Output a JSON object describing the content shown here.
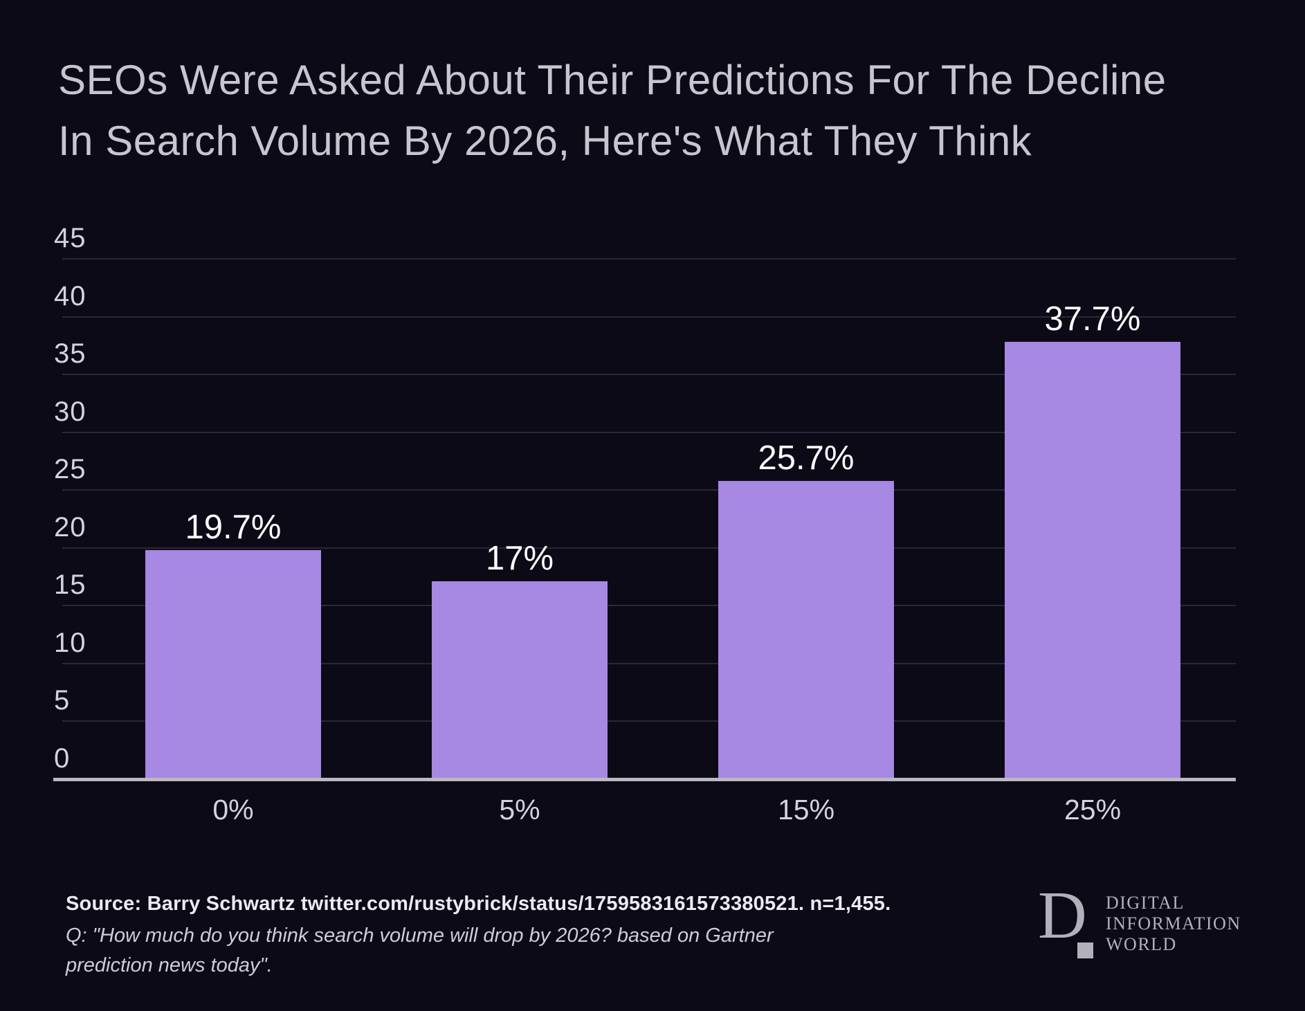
{
  "title": {
    "line1": "SEOs Were Asked About Their Predictions For The Decline",
    "line2": "In Search Volume By 2026, Here's What They Think"
  },
  "chart_data": {
    "type": "bar",
    "title": "SEOs Were Asked About Their Predictions For The Decline In Search Volume By 2026, Here's What They Think",
    "categories": [
      "0%",
      "5%",
      "15%",
      "25%"
    ],
    "values": [
      19.7,
      17,
      25.7,
      37.7
    ],
    "value_labels": [
      "19.7%",
      "17%",
      "25.7%",
      "37.7%"
    ],
    "xlabel": "",
    "ylabel": "",
    "ylim": [
      0,
      45
    ],
    "yticks": [
      0,
      5,
      10,
      15,
      20,
      25,
      30,
      35,
      40,
      45
    ],
    "grid": true,
    "legend_position": "none",
    "bar_color": "#a788e2"
  },
  "footer": {
    "source": "Source: Barry Schwartz twitter.com/rustybrick/status/1759583161573380521. n=1,455.",
    "question_lines": [
      "Q: \"How much do you think search volume will drop by 2026? based on Gartner",
      "prediction news today\"."
    ]
  },
  "logo": {
    "initial": "D",
    "lines": [
      "DIGITAL",
      "INFORMATION",
      "WORLD"
    ]
  },
  "colors": {
    "background": "#0c0a17",
    "bar": "#a788e2",
    "grid": "#2a2738",
    "axis": "#bab9c2",
    "title_text": "#c8c5d0",
    "tick_text": "#d5d2dd",
    "value_text": "#ffffff",
    "source_text": "#eceaf2",
    "footer_text": "#cfccd9",
    "logo_text": "#b2b0bb"
  }
}
